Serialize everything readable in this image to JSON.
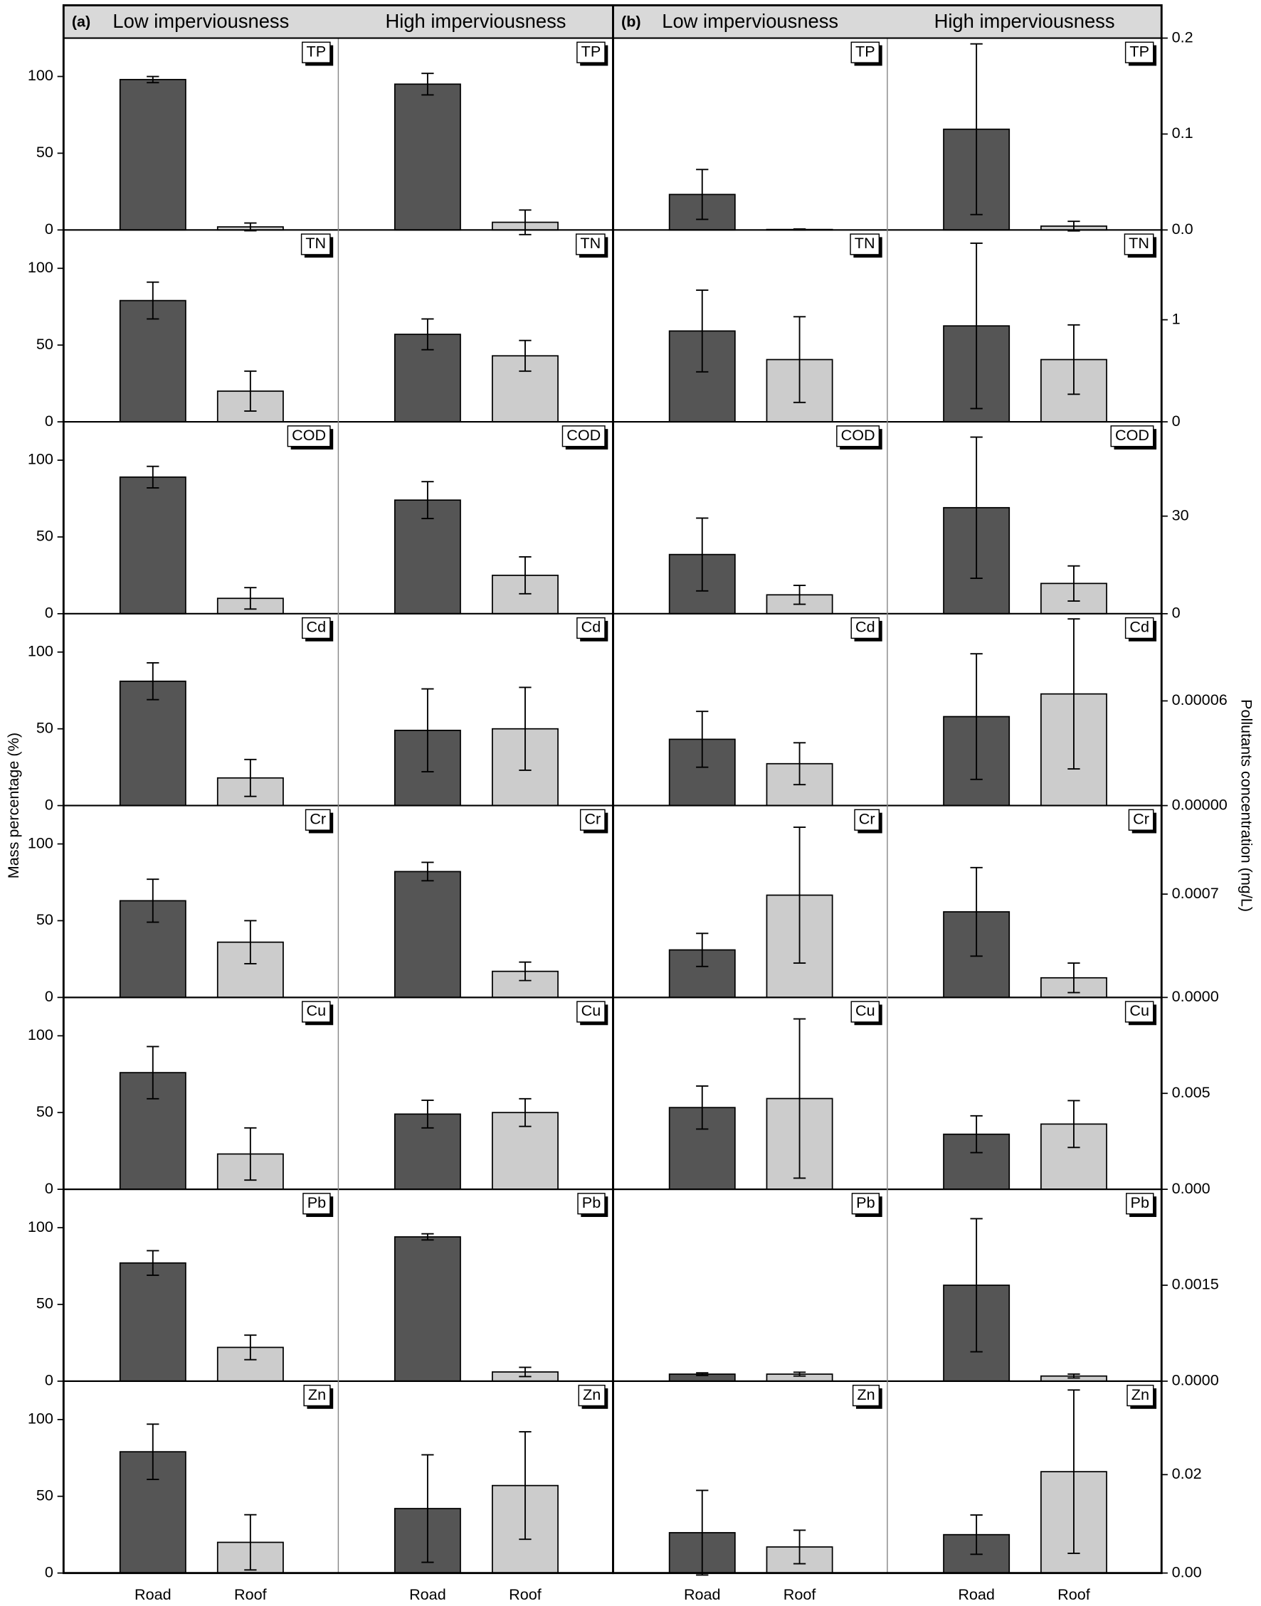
{
  "chart_data": [
    {
      "type": "bar",
      "panel_label": "(a)",
      "groups": [
        "Low imperviousness",
        "High imperviousness"
      ],
      "categories": [
        "Road",
        "Roof"
      ],
      "colors": [
        "#555555",
        "#cccccc"
      ],
      "y_label": "Mass percentage (%)",
      "rows": [
        {
          "label": "TP",
          "ylim": [
            0,
            125
          ],
          "yticks": [
            0,
            50,
            100
          ],
          "values": [
            [
              98,
              2
            ],
            [
              95,
              5
            ]
          ],
          "errors": [
            [
              2,
              2.5
            ],
            [
              7,
              8
            ]
          ]
        },
        {
          "label": "TN",
          "ylim": [
            0,
            125
          ],
          "yticks": [
            0,
            50,
            100
          ],
          "values": [
            [
              79,
              20
            ],
            [
              57,
              43
            ]
          ],
          "errors": [
            [
              12,
              13
            ],
            [
              10,
              10
            ]
          ]
        },
        {
          "label": "COD",
          "ylim": [
            0,
            125
          ],
          "yticks": [
            0,
            50,
            100
          ],
          "values": [
            [
              89,
              10
            ],
            [
              74,
              25
            ]
          ],
          "errors": [
            [
              7,
              7
            ],
            [
              12,
              12
            ]
          ]
        },
        {
          "label": "Cd",
          "ylim": [
            0,
            125
          ],
          "yticks": [
            0,
            50,
            100
          ],
          "values": [
            [
              81,
              18
            ],
            [
              49,
              50
            ]
          ],
          "errors": [
            [
              12,
              12
            ],
            [
              27,
              27
            ]
          ]
        },
        {
          "label": "Cr",
          "ylim": [
            0,
            125
          ],
          "yticks": [
            0,
            50,
            100
          ],
          "values": [
            [
              63,
              36
            ],
            [
              82,
              17
            ]
          ],
          "errors": [
            [
              14,
              14
            ],
            [
              6,
              6
            ]
          ]
        },
        {
          "label": "Cu",
          "ylim": [
            0,
            125
          ],
          "yticks": [
            0,
            50,
            100
          ],
          "values": [
            [
              76,
              23
            ],
            [
              49,
              50
            ]
          ],
          "errors": [
            [
              17,
              17
            ],
            [
              9,
              9
            ]
          ]
        },
        {
          "label": "Pb",
          "ylim": [
            0,
            125
          ],
          "yticks": [
            0,
            50,
            100
          ],
          "values": [
            [
              77,
              22
            ],
            [
              94,
              6
            ]
          ],
          "errors": [
            [
              8,
              8
            ],
            [
              2,
              3
            ]
          ]
        },
        {
          "label": "Zn",
          "ylim": [
            0,
            125
          ],
          "yticks": [
            0,
            50,
            100
          ],
          "values": [
            [
              79,
              20
            ],
            [
              42,
              57
            ]
          ],
          "errors": [
            [
              18,
              18
            ],
            [
              35,
              35
            ]
          ]
        }
      ]
    },
    {
      "type": "bar",
      "panel_label": "(b)",
      "groups": [
        "Low imperviousness",
        "High imperviousness"
      ],
      "categories": [
        "Road",
        "Roof"
      ],
      "colors": [
        "#555555",
        "#cccccc"
      ],
      "y_label": "Pollutants concentration (mg/L)",
      "rows": [
        {
          "label": "TP",
          "ylim": [
            0,
            0.2
          ],
          "yticks": [
            {
              "value": 0,
              "label": "0.0"
            },
            0.1,
            0.2
          ],
          "values": [
            [
              0.037,
              0.0005
            ],
            [
              0.105,
              0.004
            ]
          ],
          "errors": [
            [
              0.026,
              0.0005
            ],
            [
              0.089,
              0.005
            ]
          ]
        },
        {
          "label": "TN",
          "ylim": [
            0,
            1.88
          ],
          "yticks": [
            0,
            1
          ],
          "values": [
            [
              0.89,
              0.61
            ],
            [
              0.94,
              0.61
            ]
          ],
          "errors": [
            [
              0.4,
              0.42
            ],
            [
              0.81,
              0.34
            ]
          ]
        },
        {
          "label": "COD",
          "ylim": [
            0,
            59
          ],
          "yticks": [
            0,
            30
          ],
          "values": [
            [
              18.2,
              5.8
            ],
            [
              32.6,
              9.3
            ]
          ],
          "errors": [
            [
              11.2,
              2.9
            ],
            [
              21.7,
              5.4
            ]
          ]
        },
        {
          "label": "Cd",
          "ylim": [
            0,
            0.00011
          ],
          "yticks": [
            {
              "value": 0,
              "label": "0.00000"
            },
            {
              "value": 6e-05,
              "label": "0.00006"
            }
          ],
          "values": [
            [
              3.8e-05,
              2.4e-05
            ],
            [
              5.1e-05,
              6.4e-05
            ]
          ],
          "errors": [
            [
              1.6e-05,
              1.2e-05
            ],
            [
              3.6e-05,
              4.3e-05
            ]
          ]
        },
        {
          "label": "Cr",
          "ylim": [
            0,
            0.0013
          ],
          "yticks": [
            {
              "value": 0,
              "label": "0.0000"
            },
            {
              "value": 0.0007,
              "label": "0.0007"
            }
          ],
          "values": [
            [
              0.000322,
              0.000693
            ],
            [
              0.00058,
              0.000133
            ]
          ],
          "errors": [
            [
              0.000112,
              0.00046
            ],
            [
              0.0003,
              0.0001
            ]
          ]
        },
        {
          "label": "Cu",
          "ylim": [
            0,
            0.01
          ],
          "yticks": [
            {
              "value": 0,
              "label": "0.000"
            },
            0.005
          ],
          "values": [
            [
              0.00426,
              0.00473
            ],
            [
              0.00287,
              0.0034
            ]
          ],
          "errors": [
            [
              0.00112,
              0.00415
            ],
            [
              0.00096,
              0.00122
            ]
          ]
        },
        {
          "label": "Pb",
          "ylim": [
            0,
            0.003
          ],
          "yticks": [
            {
              "value": 0,
              "label": "0.0000"
            },
            0.0015
          ],
          "values": [
            [
              0.00011,
              0.00011
            ],
            [
              0.0015,
              8e-05
            ]
          ],
          "errors": [
            [
              2e-05,
              3e-05
            ],
            [
              0.00104,
              3e-05
            ]
          ]
        },
        {
          "label": "Zn",
          "ylim": [
            0,
            0.039
          ],
          "yticks": [
            {
              "value": 0,
              "label": "0.00"
            },
            {
              "value": 0.02,
              "label": "0.02"
            }
          ],
          "values": [
            [
              0.0082,
              0.0053
            ],
            [
              0.0078,
              0.0206
            ]
          ],
          "errors": [
            [
              0.0086,
              0.0034
            ],
            [
              0.004,
              0.0166
            ]
          ]
        }
      ]
    }
  ]
}
